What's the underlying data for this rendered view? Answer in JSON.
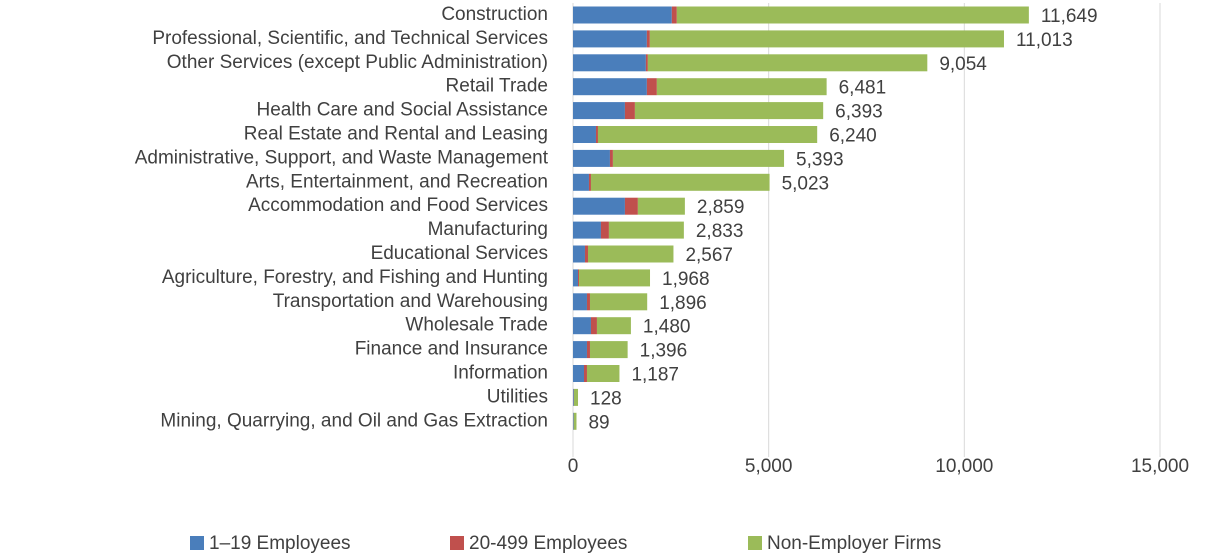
{
  "chart_data": {
    "type": "stacked_barh",
    "categories": [
      "Construction",
      "Professional, Scientific, and Technical Services",
      "Other Services (except Public Administration)",
      "Retail Trade",
      "Health Care and Social Assistance",
      "Real Estate and Rental and Leasing",
      "Administrative, Support, and Waste Management",
      "Arts, Entertainment, and Recreation",
      "Accommodation and Food Services",
      "Manufacturing",
      "Educational Services",
      "Agriculture, Forestry, and Fishing and Hunting",
      "Transportation and Warehousing",
      "Wholesale Trade",
      "Finance and Insurance",
      "Information",
      "Utilities",
      "Mining, Quarrying, and Oil and Gas Extraction"
    ],
    "series": [
      {
        "name": "1–19 Employees",
        "color": "#4a7ebb",
        "values": [
          2525,
          1888,
          1862,
          1888,
          1327,
          587,
          944,
          408,
          1327,
          714,
          306,
          128,
          357,
          459,
          357,
          281,
          20,
          15
        ]
      },
      {
        "name": "20-499 Employees",
        "color": "#c0504d",
        "values": [
          128,
          76,
          51,
          255,
          255,
          51,
          76,
          51,
          331,
          204,
          77,
          25,
          77,
          153,
          77,
          76,
          5,
          5
        ]
      },
      {
        "name": "Non-Employer Firms",
        "color": "#9bbb59",
        "values": [
          8996,
          9049,
          7141,
          4338,
          4811,
          5602,
          4373,
          4564,
          1201,
          1915,
          2184,
          1815,
          1462,
          868,
          962,
          830,
          103,
          69
        ]
      }
    ],
    "totals": [
      11649,
      11013,
      9054,
      6481,
      6393,
      6240,
      5393,
      5023,
      2859,
      2833,
      2567,
      1968,
      1896,
      1480,
      1396,
      1187,
      128,
      89
    ],
    "total_labels": [
      "11,649",
      "11,013",
      "9,054",
      "6,481",
      "6,393",
      "6,240",
      "5,393",
      "5,023",
      "2,859",
      "2,833",
      "2,567",
      "1,968",
      "1,896",
      "1,480",
      "1,396",
      "1,187",
      "128",
      "89"
    ],
    "xlim": [
      0,
      15000
    ],
    "xticks": [
      0,
      {
        "value": 5000,
        "label": "5,000"
      },
      {
        "value": 10000,
        "label": "10,000"
      },
      {
        "value": 15000,
        "label": "15,000"
      }
    ],
    "grid": true,
    "legend": "bottom"
  }
}
